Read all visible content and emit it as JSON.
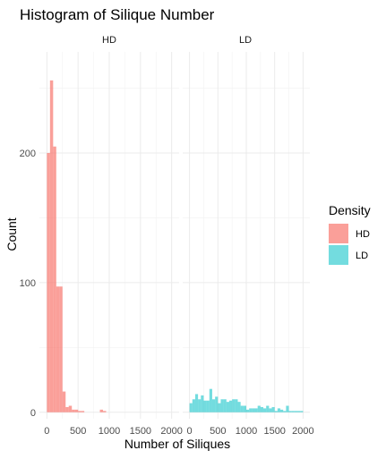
{
  "chart_data": {
    "type": "bar",
    "title": "Histogram of Silique Number",
    "xlabel": "Number of Siliques",
    "ylabel": "Count",
    "facets": [
      "HD",
      "LD"
    ],
    "x_ticks": [
      0,
      500,
      1000,
      1500,
      2000
    ],
    "x_tick_labels": [
      "0",
      "500",
      "1000",
      "1500",
      "2000"
    ],
    "y_ticks": [
      0,
      100,
      200
    ],
    "y_tick_labels": [
      "0",
      "100",
      "200"
    ],
    "xlim": [
      -120,
      2120
    ],
    "ylim": [
      -5,
      278
    ],
    "bin_width": 50,
    "grid": true,
    "legend": {
      "title": "Density",
      "position": "right",
      "entries": [
        {
          "label": "HD",
          "color": "#F8766D"
        },
        {
          "label": "LD",
          "color": "#00BFC4"
        }
      ]
    },
    "series": [
      {
        "name": "HD",
        "facet": "HD",
        "color": "#F8766D",
        "opacity": 0.7,
        "bins": [
          {
            "x": 0,
            "count": 200
          },
          {
            "x": 50,
            "count": 256
          },
          {
            "x": 100,
            "count": 205
          },
          {
            "x": 150,
            "count": 97
          },
          {
            "x": 200,
            "count": 97
          },
          {
            "x": 250,
            "count": 16
          },
          {
            "x": 300,
            "count": 4
          },
          {
            "x": 350,
            "count": 5
          },
          {
            "x": 400,
            "count": 2
          },
          {
            "x": 450,
            "count": 2
          },
          {
            "x": 500,
            "count": 1
          },
          {
            "x": 550,
            "count": 1
          },
          {
            "x": 850,
            "count": 2
          },
          {
            "x": 900,
            "count": 1
          }
        ]
      },
      {
        "name": "LD",
        "facet": "LD",
        "color": "#00BFC4",
        "opacity": 0.55,
        "bins": [
          {
            "x": 0,
            "count": 7
          },
          {
            "x": 50,
            "count": 10
          },
          {
            "x": 100,
            "count": 14
          },
          {
            "x": 150,
            "count": 10
          },
          {
            "x": 200,
            "count": 13
          },
          {
            "x": 250,
            "count": 9
          },
          {
            "x": 300,
            "count": 9
          },
          {
            "x": 350,
            "count": 18
          },
          {
            "x": 400,
            "count": 10
          },
          {
            "x": 450,
            "count": 12
          },
          {
            "x": 500,
            "count": 7
          },
          {
            "x": 550,
            "count": 10
          },
          {
            "x": 600,
            "count": 10
          },
          {
            "x": 650,
            "count": 8
          },
          {
            "x": 700,
            "count": 9
          },
          {
            "x": 750,
            "count": 10
          },
          {
            "x": 800,
            "count": 10
          },
          {
            "x": 850,
            "count": 8
          },
          {
            "x": 900,
            "count": 5
          },
          {
            "x": 950,
            "count": 5
          },
          {
            "x": 1000,
            "count": 2
          },
          {
            "x": 1050,
            "count": 3
          },
          {
            "x": 1100,
            "count": 3
          },
          {
            "x": 1150,
            "count": 3
          },
          {
            "x": 1200,
            "count": 5
          },
          {
            "x": 1250,
            "count": 4
          },
          {
            "x": 1300,
            "count": 3
          },
          {
            "x": 1350,
            "count": 5
          },
          {
            "x": 1400,
            "count": 3
          },
          {
            "x": 1450,
            "count": 4
          },
          {
            "x": 1500,
            "count": 1
          },
          {
            "x": 1550,
            "count": 3
          },
          {
            "x": 1600,
            "count": 2
          },
          {
            "x": 1650,
            "count": 1
          },
          {
            "x": 1700,
            "count": 5
          },
          {
            "x": 1750,
            "count": 1
          },
          {
            "x": 1800,
            "count": 1
          },
          {
            "x": 1850,
            "count": 1
          },
          {
            "x": 1900,
            "count": 1
          },
          {
            "x": 1950,
            "count": 1
          }
        ]
      }
    ]
  }
}
